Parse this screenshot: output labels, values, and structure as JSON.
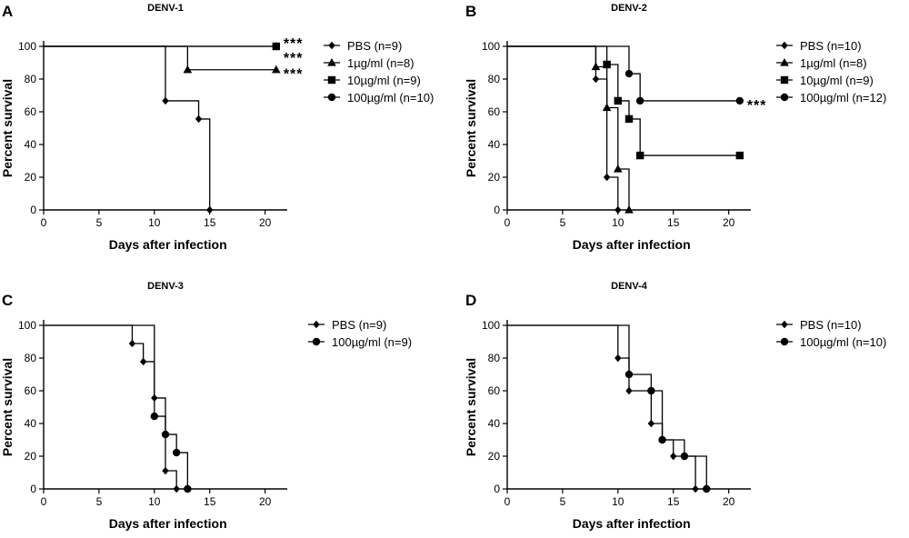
{
  "chart_data": [
    {
      "type": "line",
      "panel": "A",
      "title": "DENV-1",
      "xlabel": "Days after infection",
      "ylabel": "Percent survival",
      "xlim": [
        0,
        22
      ],
      "ylim": [
        0,
        100
      ],
      "xticks": [
        0,
        5,
        10,
        15,
        20
      ],
      "yticks": [
        0,
        20,
        40,
        60,
        80,
        100
      ],
      "legend": "right",
      "series": [
        {
          "name": "PBS (n=9)",
          "marker": "diamond",
          "x": [
            0,
            11,
            14,
            15
          ],
          "values": [
            100,
            66.7,
            55.6,
            0
          ]
        },
        {
          "name": "1µg/ml (n=8)",
          "marker": "triangle",
          "x": [
            0,
            13,
            21
          ],
          "values": [
            100,
            85.7,
            85.7
          ],
          "significance": "***"
        },
        {
          "name": "10µg/ml (n=9)",
          "marker": "square",
          "x": [
            0,
            21
          ],
          "values": [
            100,
            100
          ],
          "significance": "***"
        },
        {
          "name": "100µg/ml (n=10)",
          "marker": "circle",
          "x": [
            0,
            21
          ],
          "values": [
            100,
            100
          ],
          "significance": "***"
        }
      ]
    },
    {
      "type": "line",
      "panel": "B",
      "title": "DENV-2",
      "xlabel": "Days after infection",
      "ylabel": "Percent survival",
      "xlim": [
        0,
        22
      ],
      "ylim": [
        0,
        100
      ],
      "xticks": [
        0,
        5,
        10,
        15,
        20
      ],
      "yticks": [
        0,
        20,
        40,
        60,
        80,
        100
      ],
      "legend": "right",
      "series": [
        {
          "name": "PBS (n=10)",
          "marker": "diamond",
          "x": [
            0,
            8,
            9,
            10
          ],
          "values": [
            100,
            80,
            20,
            0
          ]
        },
        {
          "name": "1µg/ml (n=8)",
          "marker": "triangle",
          "x": [
            0,
            8,
            9,
            10,
            11
          ],
          "values": [
            100,
            87.5,
            62.5,
            25,
            0
          ]
        },
        {
          "name": "10µg/ml (n=9)",
          "marker": "square",
          "x": [
            0,
            9,
            10,
            11,
            12,
            21
          ],
          "values": [
            100,
            88.9,
            66.7,
            55.6,
            33.3,
            33.3
          ]
        },
        {
          "name": "100µg/ml (n=12)",
          "marker": "circle",
          "x": [
            0,
            11,
            12,
            21
          ],
          "values": [
            100,
            83.3,
            66.7,
            66.7
          ],
          "significance": "***"
        }
      ]
    },
    {
      "type": "line",
      "panel": "C",
      "title": "DENV-3",
      "xlabel": "Days after infection",
      "ylabel": "Percent survival",
      "xlim": [
        0,
        22
      ],
      "ylim": [
        0,
        100
      ],
      "xticks": [
        0,
        5,
        10,
        15,
        20
      ],
      "yticks": [
        0,
        20,
        40,
        60,
        80,
        100
      ],
      "legend": "right",
      "series": [
        {
          "name": "PBS (n=9)",
          "marker": "diamond",
          "x": [
            0,
            8,
            9,
            10,
            11,
            12
          ],
          "values": [
            100,
            88.9,
            77.8,
            55.6,
            11.1,
            0
          ]
        },
        {
          "name": "100µg/ml (n=9)",
          "marker": "circle",
          "x": [
            0,
            10,
            11,
            12,
            13
          ],
          "values": [
            100,
            44.4,
            33.3,
            22.2,
            0
          ]
        }
      ]
    },
    {
      "type": "line",
      "panel": "D",
      "title": "DENV-4",
      "xlabel": "Days after infection",
      "ylabel": "Percent survival",
      "xlim": [
        0,
        22
      ],
      "ylim": [
        0,
        100
      ],
      "xticks": [
        0,
        5,
        10,
        15,
        20
      ],
      "yticks": [
        0,
        20,
        40,
        60,
        80,
        100
      ],
      "legend": "right",
      "series": [
        {
          "name": "PBS (n=10)",
          "marker": "diamond",
          "x": [
            0,
            10,
            11,
            13,
            14,
            15,
            17
          ],
          "values": [
            100,
            80,
            60,
            40,
            30,
            20,
            0
          ]
        },
        {
          "name": "100µg/ml (n=10)",
          "marker": "circle",
          "x": [
            0,
            11,
            13,
            14,
            16,
            18
          ],
          "values": [
            100,
            70,
            60,
            30,
            20,
            0
          ]
        }
      ]
    }
  ]
}
